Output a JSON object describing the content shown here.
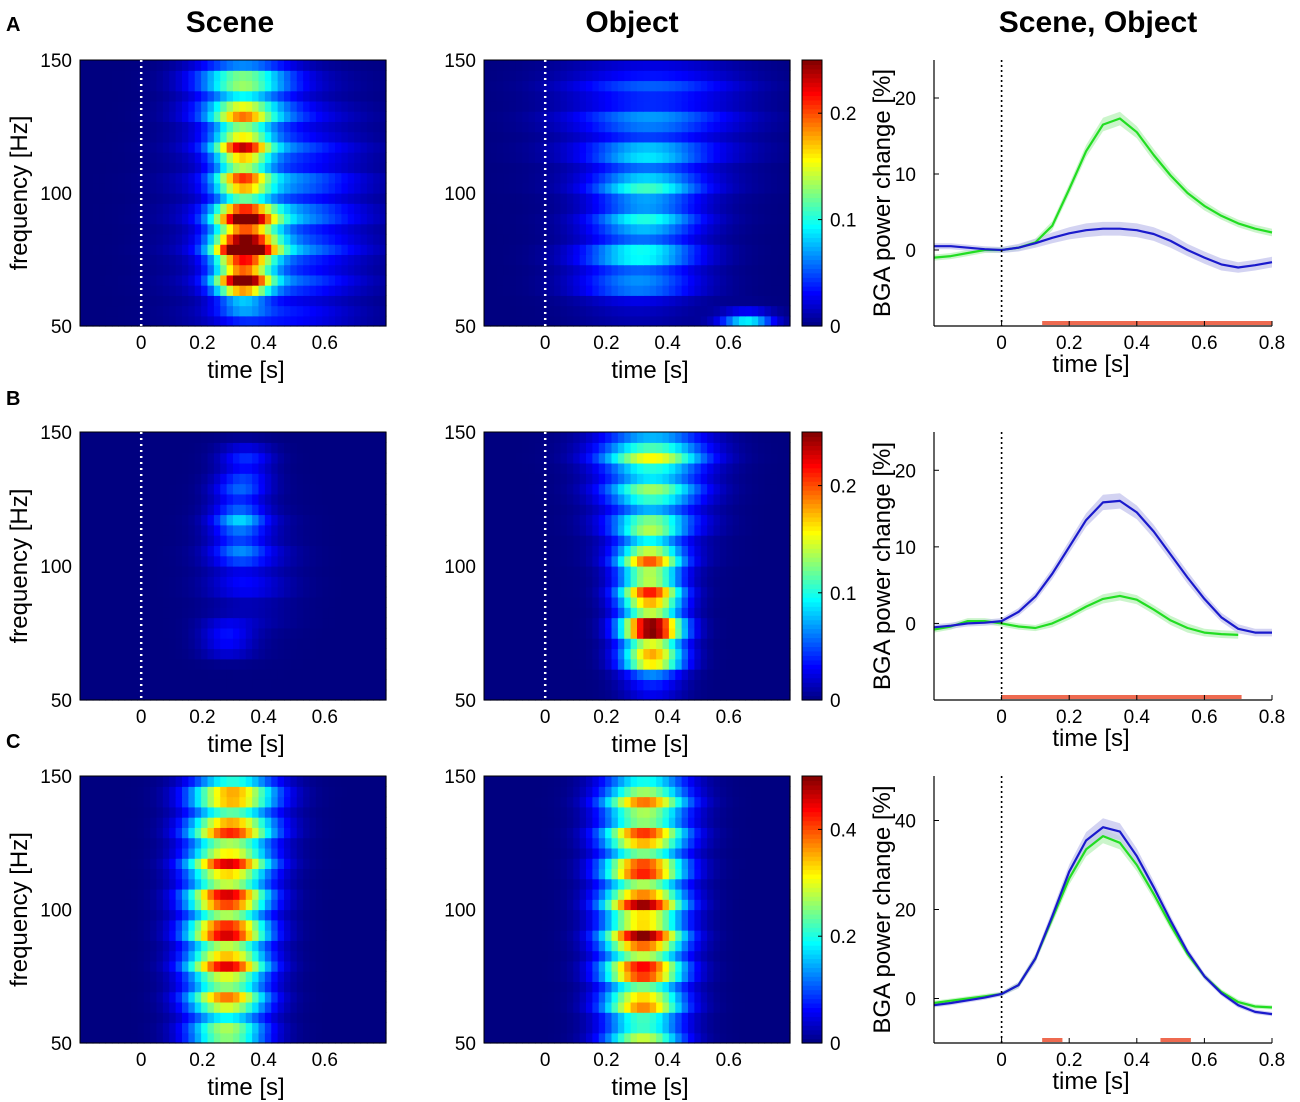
{
  "figure": {
    "column_titles": [
      "Scene",
      "Object",
      "Scene, Object"
    ],
    "panel_labels": [
      "A",
      "B",
      "C"
    ]
  },
  "chart_data": [
    {
      "type": "heatmap",
      "id": "A-scene",
      "row": 0,
      "col": 0,
      "xlabel": "time [s]",
      "ylabel": "frequency [Hz]",
      "xlim": [
        -0.2,
        0.8
      ],
      "ylim": [
        50,
        150
      ],
      "xticks": [
        "0",
        "0.2",
        "0.4",
        "0.6"
      ],
      "yticks": [
        "50",
        "100",
        "150"
      ],
      "colormap": "jet",
      "clim": [
        0,
        0.25
      ],
      "onset_line": 0,
      "hotspots": [
        {
          "t": 0.34,
          "f": 84,
          "amp": 0.25,
          "st": 0.07,
          "sf": 8
        },
        {
          "t": 0.33,
          "f": 68,
          "amp": 0.21,
          "st": 0.06,
          "sf": 7
        },
        {
          "t": 0.33,
          "f": 113,
          "amp": 0.17,
          "st": 0.06,
          "sf": 14
        },
        {
          "t": 0.33,
          "f": 140,
          "amp": 0.11,
          "st": 0.11,
          "sf": 14
        },
        {
          "t": 0.45,
          "f": 90,
          "amp": 0.08,
          "st": 0.18,
          "sf": 30
        }
      ]
    },
    {
      "type": "heatmap",
      "id": "A-object",
      "row": 0,
      "col": 1,
      "xlabel": "time [s]",
      "ylabel": "",
      "xlim": [
        -0.2,
        0.8
      ],
      "ylim": [
        50,
        150
      ],
      "xticks": [
        "0",
        "0.2",
        "0.4",
        "0.6"
      ],
      "yticks": [
        "50",
        "100",
        "150"
      ],
      "colormap": "jet",
      "clim": [
        0,
        0.25
      ],
      "onset_line": 0,
      "colorbar_ticks": [
        "0",
        "0.1",
        "0.2"
      ],
      "hotspots": [
        {
          "t": 0.33,
          "f": 98,
          "amp": 0.09,
          "st": 0.12,
          "sf": 15
        },
        {
          "t": 0.3,
          "f": 72,
          "amp": 0.08,
          "st": 0.14,
          "sf": 10
        },
        {
          "t": 0.66,
          "f": 52,
          "amp": 0.09,
          "st": 0.06,
          "sf": 3
        },
        {
          "t": 0.35,
          "f": 130,
          "amp": 0.06,
          "st": 0.2,
          "sf": 20
        }
      ]
    },
    {
      "type": "line",
      "id": "A-lines",
      "row": 0,
      "col": 2,
      "xlabel": "time [s]",
      "ylabel": "BGA power change [%]",
      "xlim": [
        -0.2,
        0.8
      ],
      "ylim": [
        -10,
        25
      ],
      "xticks": [
        0,
        0.2,
        0.4,
        0.6,
        0.8
      ],
      "yticks": [
        0,
        10,
        20
      ],
      "series": [
        {
          "name": "Scene",
          "color": "#22dd22",
          "band_color": "#b9f2b9",
          "x": [
            -0.2,
            -0.15,
            -0.1,
            -0.05,
            0,
            0.05,
            0.1,
            0.15,
            0.2,
            0.25,
            0.3,
            0.35,
            0.4,
            0.45,
            0.5,
            0.55,
            0.6,
            0.65,
            0.7,
            0.75,
            0.8
          ],
          "y": [
            -1,
            -0.8,
            -0.4,
            0,
            0,
            0.3,
            1,
            3.2,
            8,
            13,
            16.5,
            17.3,
            15.5,
            12.5,
            9.8,
            7.5,
            5.8,
            4.5,
            3.5,
            2.8,
            2.3
          ],
          "sem": [
            0.4,
            0.4,
            0.4,
            0.4,
            0.4,
            0.4,
            0.5,
            0.6,
            0.7,
            0.8,
            0.9,
            0.9,
            0.8,
            0.8,
            0.7,
            0.6,
            0.6,
            0.5,
            0.5,
            0.5,
            0.5
          ]
        },
        {
          "name": "Object",
          "color": "#1a1acc",
          "band_color": "#c4c4ee",
          "x": [
            -0.2,
            -0.15,
            -0.1,
            -0.05,
            0,
            0.05,
            0.1,
            0.15,
            0.2,
            0.25,
            0.3,
            0.35,
            0.4,
            0.45,
            0.5,
            0.55,
            0.6,
            0.65,
            0.7,
            0.75,
            0.8
          ],
          "y": [
            0.5,
            0.5,
            0.3,
            0.1,
            0,
            0.3,
            0.9,
            1.6,
            2.2,
            2.6,
            2.8,
            2.8,
            2.6,
            2.1,
            1.2,
            0,
            -1,
            -1.9,
            -2.3,
            -2,
            -1.6
          ],
          "sem": [
            0.4,
            0.4,
            0.4,
            0.4,
            0.4,
            0.5,
            0.6,
            0.7,
            0.8,
            0.9,
            0.9,
            0.9,
            0.9,
            0.9,
            0.9,
            0.8,
            0.8,
            0.8,
            0.7,
            0.7,
            0.7
          ]
        }
      ],
      "onset_line": 0,
      "significance": [
        {
          "x0": 0.12,
          "x1": 0.8
        }
      ],
      "significance_color": "#ee6a50"
    },
    {
      "type": "heatmap",
      "id": "B-scene",
      "row": 1,
      "col": 0,
      "xlabel": "time [s]",
      "ylabel": "frequency [Hz]",
      "xlim": [
        -0.2,
        0.8
      ],
      "ylim": [
        50,
        150
      ],
      "xticks": [
        "0",
        "0.2",
        "0.4",
        "0.6"
      ],
      "yticks": [
        "50",
        "100",
        "150"
      ],
      "colormap": "jet",
      "clim": [
        0,
        0.25
      ],
      "onset_line": 0,
      "hotspots": [
        {
          "t": 0.32,
          "f": 118,
          "amp": 0.07,
          "st": 0.06,
          "sf": 12
        },
        {
          "t": 0.28,
          "f": 73,
          "amp": 0.05,
          "st": 0.06,
          "sf": 4
        },
        {
          "t": 0.35,
          "f": 138,
          "amp": 0.04,
          "st": 0.06,
          "sf": 5
        },
        {
          "t": 0.35,
          "f": 100,
          "amp": 0.03,
          "st": 0.1,
          "sf": 15
        }
      ]
    },
    {
      "type": "heatmap",
      "id": "B-object",
      "row": 1,
      "col": 1,
      "xlabel": "time [s]",
      "ylabel": "",
      "xlim": [
        -0.2,
        0.8
      ],
      "ylim": [
        50,
        150
      ],
      "xticks": [
        "0",
        "0.2",
        "0.4",
        "0.6"
      ],
      "yticks": [
        "50",
        "100",
        "150"
      ],
      "colormap": "jet",
      "clim": [
        0,
        0.25
      ],
      "onset_line": 0,
      "colorbar_ticks": [
        "0",
        "0.1",
        "0.2"
      ],
      "hotspots": [
        {
          "t": 0.35,
          "f": 73,
          "amp": 0.25,
          "st": 0.07,
          "sf": 10
        },
        {
          "t": 0.34,
          "f": 97,
          "amp": 0.18,
          "st": 0.07,
          "sf": 12
        },
        {
          "t": 0.35,
          "f": 128,
          "amp": 0.12,
          "st": 0.11,
          "sf": 16
        },
        {
          "t": 0.35,
          "f": 145,
          "amp": 0.08,
          "st": 0.13,
          "sf": 8
        }
      ]
    },
    {
      "type": "line",
      "id": "B-lines",
      "row": 1,
      "col": 2,
      "xlabel": "time [s]",
      "ylabel": "BGA power change [%]",
      "xlim": [
        -0.2,
        0.8
      ],
      "ylim": [
        -10,
        25
      ],
      "xticks": [
        0,
        0.2,
        0.4,
        0.6,
        0.8
      ],
      "yticks": [
        0,
        10,
        20
      ],
      "series": [
        {
          "name": "Scene",
          "color": "#22dd22",
          "band_color": "#b9f2b9",
          "x": [
            -0.2,
            -0.15,
            -0.1,
            -0.05,
            0,
            0.05,
            0.1,
            0.15,
            0.2,
            0.25,
            0.3,
            0.35,
            0.4,
            0.45,
            0.5,
            0.55,
            0.6,
            0.65,
            0.7
          ],
          "y": [
            -0.8,
            -0.4,
            0.3,
            0.3,
            0,
            -0.4,
            -0.6,
            0,
            1,
            2.2,
            3.2,
            3.6,
            3.1,
            1.8,
            0.4,
            -0.6,
            -1.2,
            -1.4,
            -1.5
          ],
          "sem": [
            0.4,
            0.4,
            0.4,
            0.4,
            0.4,
            0.4,
            0.4,
            0.5,
            0.5,
            0.5,
            0.6,
            0.6,
            0.6,
            0.6,
            0.6,
            0.6,
            0.5,
            0.5,
            0.5
          ]
        },
        {
          "name": "Object",
          "color": "#1a1acc",
          "band_color": "#c4c4ee",
          "x": [
            -0.2,
            -0.15,
            -0.1,
            -0.05,
            0,
            0.05,
            0.1,
            0.15,
            0.2,
            0.25,
            0.3,
            0.35,
            0.4,
            0.45,
            0.5,
            0.55,
            0.6,
            0.65,
            0.7,
            0.75,
            0.8
          ],
          "y": [
            -0.5,
            -0.3,
            0,
            0.1,
            0.3,
            1.5,
            3.5,
            6.5,
            10,
            13.5,
            15.8,
            16,
            14.5,
            12,
            9,
            6,
            3.2,
            0.8,
            -0.7,
            -1.2,
            -1.2
          ],
          "sem": [
            0.4,
            0.4,
            0.4,
            0.4,
            0.4,
            0.5,
            0.6,
            0.7,
            0.8,
            0.9,
            1,
            1,
            0.9,
            0.9,
            0.8,
            0.8,
            0.7,
            0.6,
            0.6,
            0.5,
            0.5
          ]
        }
      ],
      "onset_line": 0,
      "significance": [
        {
          "x0": 0,
          "x1": 0.71
        }
      ],
      "significance_color": "#ee6a50"
    },
    {
      "type": "heatmap",
      "id": "C-scene",
      "row": 2,
      "col": 0,
      "xlabel": "time [s]",
      "ylabel": "frequency [Hz]",
      "xlim": [
        -0.2,
        0.8
      ],
      "ylim": [
        50,
        150
      ],
      "xticks": [
        "0",
        "0.2",
        "0.4",
        "0.6"
      ],
      "yticks": [
        "50",
        "100",
        "150"
      ],
      "colormap": "jet",
      "clim": [
        0,
        0.5
      ],
      "onset_line": null,
      "hotspots": [
        {
          "t": 0.28,
          "f": 92,
          "amp": 0.48,
          "st": 0.09,
          "sf": 38
        },
        {
          "t": 0.32,
          "f": 145,
          "amp": 0.2,
          "st": 0.1,
          "sf": 20
        }
      ]
    },
    {
      "type": "heatmap",
      "id": "C-object",
      "row": 2,
      "col": 1,
      "xlabel": "time [s]",
      "ylabel": "",
      "xlim": [
        -0.2,
        0.8
      ],
      "ylim": [
        50,
        150
      ],
      "xticks": [
        "0",
        "0.2",
        "0.4",
        "0.6"
      ],
      "yticks": [
        "50",
        "100",
        "150"
      ],
      "colormap": "jet",
      "clim": [
        0,
        0.5
      ],
      "onset_line": null,
      "colorbar_ticks": [
        "0",
        "0.2",
        "0.4"
      ],
      "hotspots": [
        {
          "t": 0.32,
          "f": 90,
          "amp": 0.5,
          "st": 0.09,
          "sf": 36
        },
        {
          "t": 0.33,
          "f": 145,
          "amp": 0.2,
          "st": 0.1,
          "sf": 20
        }
      ]
    },
    {
      "type": "line",
      "id": "C-lines",
      "row": 2,
      "col": 2,
      "xlabel": "time [s]",
      "ylabel": "BGA power change [%]",
      "xlim": [
        -0.2,
        0.8
      ],
      "ylim": [
        -10,
        50
      ],
      "xticks": [
        0,
        0.2,
        0.4,
        0.6,
        0.8
      ],
      "yticks": [
        0,
        20,
        40
      ],
      "series": [
        {
          "name": "Scene",
          "color": "#22dd22",
          "band_color": "#b9f2b9",
          "x": [
            -0.2,
            -0.15,
            -0.1,
            -0.05,
            0,
            0.05,
            0.1,
            0.15,
            0.2,
            0.25,
            0.3,
            0.35,
            0.4,
            0.45,
            0.5,
            0.55,
            0.6,
            0.65,
            0.7,
            0.75,
            0.8
          ],
          "y": [
            -1,
            -0.5,
            0,
            0.5,
            1,
            3,
            9,
            18,
            27,
            33.5,
            36.5,
            35,
            30,
            23.5,
            16.5,
            10,
            5,
            1.5,
            -0.8,
            -1.8,
            -2
          ],
          "sem": [
            0.5,
            0.5,
            0.5,
            0.5,
            0.5,
            0.7,
            1,
            1.2,
            1.4,
            1.6,
            1.6,
            1.5,
            1.4,
            1.2,
            1,
            0.8,
            0.7,
            0.6,
            0.6,
            0.5,
            0.5
          ]
        },
        {
          "name": "Object",
          "color": "#1a1acc",
          "band_color": "#c4c4ee",
          "x": [
            -0.2,
            -0.15,
            -0.1,
            -0.05,
            0,
            0.05,
            0.1,
            0.15,
            0.2,
            0.25,
            0.3,
            0.35,
            0.4,
            0.45,
            0.5,
            0.55,
            0.6,
            0.65,
            0.7,
            0.75,
            0.8
          ],
          "y": [
            -1.5,
            -1,
            -0.4,
            0.2,
            1,
            3,
            9,
            18.5,
            28.5,
            35.5,
            38.5,
            37.5,
            32,
            25,
            17.5,
            10.5,
            5,
            1.2,
            -1.5,
            -3,
            -3.5
          ],
          "sem": [
            0.5,
            0.5,
            0.5,
            0.5,
            0.5,
            0.7,
            1,
            1.3,
            1.6,
            1.9,
            2,
            1.9,
            1.7,
            1.4,
            1.1,
            0.9,
            0.7,
            0.6,
            0.6,
            0.5,
            0.5
          ]
        }
      ],
      "onset_line": 0,
      "significance": [
        {
          "x0": 0.12,
          "x1": 0.18
        },
        {
          "x0": 0.47,
          "x1": 0.56
        }
      ],
      "significance_color": "#ee6a50"
    }
  ]
}
